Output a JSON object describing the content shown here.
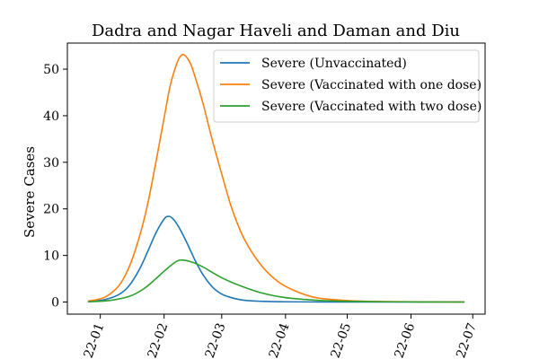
{
  "chart_data": {
    "type": "line",
    "title": "Dadra and Nagar Haveli and Daman and Diu",
    "xlabel": "",
    "ylabel": "Severe Cases",
    "xlim": [
      "2021-12-16",
      "2022-07-07"
    ],
    "ylim": [
      -2.6,
      55.6
    ],
    "xticks": [
      {
        "date": "2022-01-01",
        "label": "22-01"
      },
      {
        "date": "2022-02-01",
        "label": "22-02"
      },
      {
        "date": "2022-03-01",
        "label": "22-03"
      },
      {
        "date": "2022-04-01",
        "label": "22-04"
      },
      {
        "date": "2022-05-01",
        "label": "22-05"
      },
      {
        "date": "2022-06-01",
        "label": "22-06"
      },
      {
        "date": "2022-07-01",
        "label": "22-07"
      }
    ],
    "yticks": [
      0,
      10,
      20,
      30,
      40,
      50
    ],
    "grid": false,
    "legend_position": "upper right",
    "series": [
      {
        "name": "Severe (Unvaccinated)",
        "color": "#1f77b4",
        "x": [
          "2021-12-26",
          "2022-01-03",
          "2022-01-10",
          "2022-01-15",
          "2022-01-20",
          "2022-01-24",
          "2022-01-28",
          "2022-02-01",
          "2022-02-03",
          "2022-02-05",
          "2022-02-08",
          "2022-02-12",
          "2022-02-16",
          "2022-02-20",
          "2022-02-25",
          "2022-03-02",
          "2022-03-10",
          "2022-03-20",
          "2022-04-01",
          "2022-04-20",
          "2022-05-20",
          "2022-06-27"
        ],
        "y": [
          0.1,
          0.5,
          1.6,
          3.5,
          7.0,
          10.8,
          14.8,
          17.8,
          18.4,
          18.0,
          16.2,
          12.8,
          9.0,
          5.8,
          3.0,
          1.5,
          0.5,
          0.15,
          0.05,
          0,
          0,
          0
        ]
      },
      {
        "name": "Severe (Vaccinated with one dose)",
        "color": "#ff7f0e",
        "x": [
          "2021-12-26",
          "2022-01-03",
          "2022-01-10",
          "2022-01-15",
          "2022-01-20",
          "2022-01-24",
          "2022-01-28",
          "2022-02-01",
          "2022-02-04",
          "2022-02-07",
          "2022-02-09",
          "2022-02-11",
          "2022-02-14",
          "2022-02-17",
          "2022-02-20",
          "2022-02-24",
          "2022-03-01",
          "2022-03-06",
          "2022-03-12",
          "2022-03-20",
          "2022-03-28",
          "2022-04-05",
          "2022-04-15",
          "2022-04-25",
          "2022-05-10",
          "2022-06-01",
          "2022-06-27"
        ],
        "y": [
          0.2,
          1.0,
          3.5,
          7.5,
          14.0,
          21.0,
          30.0,
          39.5,
          46.5,
          51.0,
          52.8,
          53.0,
          51.0,
          47.0,
          42.5,
          35.5,
          27.5,
          20.0,
          13.5,
          8.0,
          4.5,
          2.5,
          1.0,
          0.5,
          0.15,
          0.05,
          0
        ]
      },
      {
        "name": "Severe (Vaccinated with two dose)",
        "color": "#2ca02c",
        "x": [
          "2021-12-26",
          "2022-01-05",
          "2022-01-15",
          "2022-01-22",
          "2022-01-28",
          "2022-02-02",
          "2022-02-07",
          "2022-02-10",
          "2022-02-15",
          "2022-02-20",
          "2022-02-25",
          "2022-03-02",
          "2022-03-10",
          "2022-03-20",
          "2022-03-31",
          "2022-04-15",
          "2022-05-01",
          "2022-05-20",
          "2022-06-27"
        ],
        "y": [
          0.05,
          0.3,
          1.2,
          2.8,
          5.0,
          7.0,
          8.7,
          9.0,
          8.5,
          7.5,
          6.2,
          5.0,
          3.5,
          2.0,
          1.0,
          0.4,
          0.15,
          0.05,
          0
        ]
      }
    ]
  }
}
